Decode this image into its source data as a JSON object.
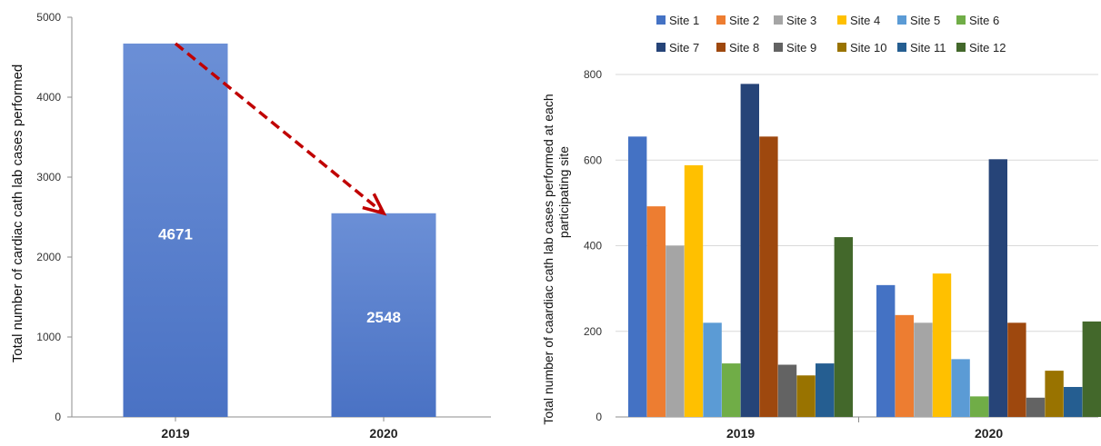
{
  "chart_data": [
    {
      "type": "bar",
      "categories": [
        "2019",
        "2020"
      ],
      "values": [
        4671,
        2548
      ],
      "data_labels": [
        "4671",
        "2548"
      ],
      "ylabel": "Total number of cardiac cath lab cases performed",
      "ylim": [
        0,
        5000
      ],
      "yticks": [
        "0",
        "1000",
        "2000",
        "3000",
        "4000",
        "5000"
      ],
      "grid": false,
      "annotation": "dashed red arrow from 2019 bar top to 2020 bar top",
      "colors": {
        "bar": "#4a72c4",
        "bar_top": "#6b8fd6",
        "arrow": "#c00000"
      }
    },
    {
      "type": "bar",
      "categories": [
        "2019",
        "2020"
      ],
      "ylabel": "Total number of caardiac cath lab cases performed at each participating site",
      "ylim": [
        0,
        800
      ],
      "yticks": [
        "0",
        "200",
        "400",
        "600",
        "800"
      ],
      "grid": true,
      "legend_position": "top",
      "series": [
        {
          "name": "Site 1",
          "values": [
            655,
            308
          ],
          "color": "#4472c4"
        },
        {
          "name": "Site 2",
          "values": [
            492,
            238
          ],
          "color": "#ed7d31"
        },
        {
          "name": "Site 3",
          "values": [
            400,
            220
          ],
          "color": "#a5a5a5"
        },
        {
          "name": "Site 4",
          "values": [
            588,
            335
          ],
          "color": "#ffc000"
        },
        {
          "name": "Site 5",
          "values": [
            220,
            135
          ],
          "color": "#5b9bd5"
        },
        {
          "name": "Site 6",
          "values": [
            125,
            48
          ],
          "color": "#70ad47"
        },
        {
          "name": "Site 7",
          "values": [
            778,
            602
          ],
          "color": "#264478"
        },
        {
          "name": "Site 8",
          "values": [
            655,
            220
          ],
          "color": "#9e480e"
        },
        {
          "name": "Site 9",
          "values": [
            122,
            45
          ],
          "color": "#636363"
        },
        {
          "name": "Site 10",
          "values": [
            97,
            108
          ],
          "color": "#997300"
        },
        {
          "name": "Site 11",
          "values": [
            125,
            70
          ],
          "color": "#255e91"
        },
        {
          "name": "Site 12",
          "values": [
            420,
            223
          ],
          "color": "#43682b"
        }
      ]
    }
  ]
}
